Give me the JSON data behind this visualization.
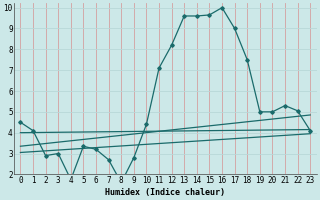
{
  "xlabel": "Humidex (Indice chaleur)",
  "bg_color": "#cce8e8",
  "grid_color_major": "#e8c8c8",
  "grid_color_minor": "#e8e8e8",
  "line_color": "#1a6b6b",
  "xlim": [
    -0.5,
    23.5
  ],
  "ylim": [
    2,
    10.2
  ],
  "yticks": [
    2,
    3,
    4,
    5,
    6,
    7,
    8,
    9,
    10
  ],
  "xticks": [
    0,
    1,
    2,
    3,
    4,
    5,
    6,
    7,
    8,
    9,
    10,
    11,
    12,
    13,
    14,
    15,
    16,
    17,
    18,
    19,
    20,
    21,
    22,
    23
  ],
  "main_line_x": [
    0,
    1,
    2,
    3,
    4,
    5,
    6,
    7,
    8,
    9,
    10,
    11,
    12,
    13,
    14,
    15,
    16,
    17,
    18,
    19,
    20,
    21,
    22,
    23
  ],
  "main_line_y": [
    4.5,
    4.1,
    2.9,
    3.0,
    1.75,
    3.35,
    3.2,
    2.7,
    1.6,
    2.8,
    4.4,
    7.1,
    8.2,
    9.6,
    9.6,
    9.65,
    10.0,
    9.0,
    7.5,
    5.0,
    5.0,
    5.3,
    5.05,
    4.1
  ],
  "trend1_x": [
    0,
    23
  ],
  "trend1_y": [
    4.0,
    4.15
  ],
  "trend2_x": [
    0,
    23
  ],
  "trend2_y": [
    3.35,
    4.85
  ],
  "trend3_x": [
    0,
    23
  ],
  "trend3_y": [
    3.05,
    3.95
  ],
  "xlabel_fontsize": 6,
  "tick_fontsize": 5.5
}
